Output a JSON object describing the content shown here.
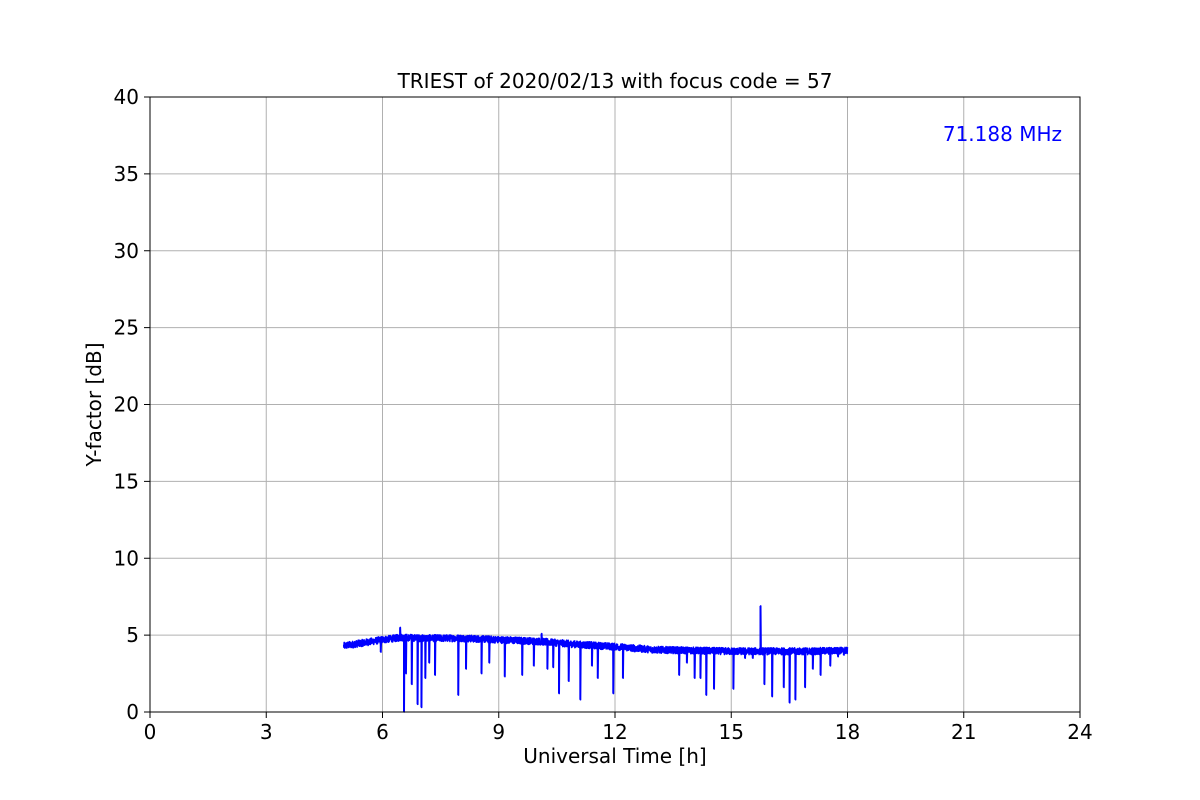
{
  "chart_data": {
    "type": "line",
    "title": "TRIEST of 2020/02/13 with focus code = 57",
    "xlabel": "Universal Time [h]",
    "ylabel": "Y-factor [dB]",
    "xlim": [
      0,
      24
    ],
    "ylim": [
      0,
      40
    ],
    "x_ticks": [
      0,
      3,
      6,
      9,
      12,
      15,
      18,
      21,
      24
    ],
    "y_ticks": [
      0,
      5,
      10,
      15,
      20,
      25,
      30,
      35,
      40
    ],
    "grid": true,
    "annotation": {
      "text": "71.188 MHz",
      "position": "top-right",
      "color": "#0000ff"
    },
    "series": [
      {
        "color": "#0000ff",
        "baseline": [
          [
            5.0,
            4.3
          ],
          [
            5.5,
            4.5
          ],
          [
            6.0,
            4.7
          ],
          [
            6.5,
            4.85
          ],
          [
            7.0,
            4.8
          ],
          [
            8.0,
            4.8
          ],
          [
            9.0,
            4.7
          ],
          [
            10.0,
            4.6
          ],
          [
            11.0,
            4.4
          ],
          [
            12.0,
            4.25
          ],
          [
            13.0,
            4.05
          ],
          [
            14.0,
            4.0
          ],
          [
            15.0,
            3.95
          ],
          [
            16.0,
            3.95
          ],
          [
            17.0,
            3.95
          ],
          [
            18.0,
            4.0
          ]
        ],
        "spikes": [
          [
            5.95,
            3.9
          ],
          [
            6.45,
            5.5
          ],
          [
            6.55,
            0.0
          ],
          [
            6.6,
            2.5
          ],
          [
            6.75,
            1.8
          ],
          [
            6.9,
            0.5
          ],
          [
            7.0,
            0.3
          ],
          [
            7.1,
            2.2
          ],
          [
            7.2,
            3.2
          ],
          [
            7.35,
            2.4
          ],
          [
            7.95,
            1.1
          ],
          [
            8.15,
            2.8
          ],
          [
            8.55,
            2.5
          ],
          [
            8.75,
            3.2
          ],
          [
            9.15,
            2.3
          ],
          [
            9.6,
            2.4
          ],
          [
            9.9,
            3.0
          ],
          [
            10.1,
            5.1
          ],
          [
            10.25,
            2.8
          ],
          [
            10.4,
            2.9
          ],
          [
            10.55,
            1.2
          ],
          [
            10.8,
            2.0
          ],
          [
            11.1,
            0.8
          ],
          [
            11.4,
            3.0
          ],
          [
            11.55,
            2.2
          ],
          [
            11.95,
            1.2
          ],
          [
            12.2,
            2.2
          ],
          [
            13.65,
            2.4
          ],
          [
            13.85,
            3.2
          ],
          [
            14.05,
            2.2
          ],
          [
            14.2,
            2.2
          ],
          [
            14.35,
            1.1
          ],
          [
            14.55,
            1.5
          ],
          [
            15.05,
            1.5
          ],
          [
            15.35,
            3.5
          ],
          [
            15.55,
            3.5
          ],
          [
            15.75,
            6.9
          ],
          [
            15.85,
            1.8
          ],
          [
            16.05,
            1.0
          ],
          [
            16.35,
            1.6
          ],
          [
            16.5,
            0.6
          ],
          [
            16.65,
            0.8
          ],
          [
            16.9,
            1.6
          ],
          [
            17.1,
            2.8
          ],
          [
            17.3,
            2.4
          ],
          [
            17.55,
            3.0
          ],
          [
            17.75,
            3.6
          ],
          [
            17.9,
            3.7
          ]
        ]
      }
    ]
  }
}
